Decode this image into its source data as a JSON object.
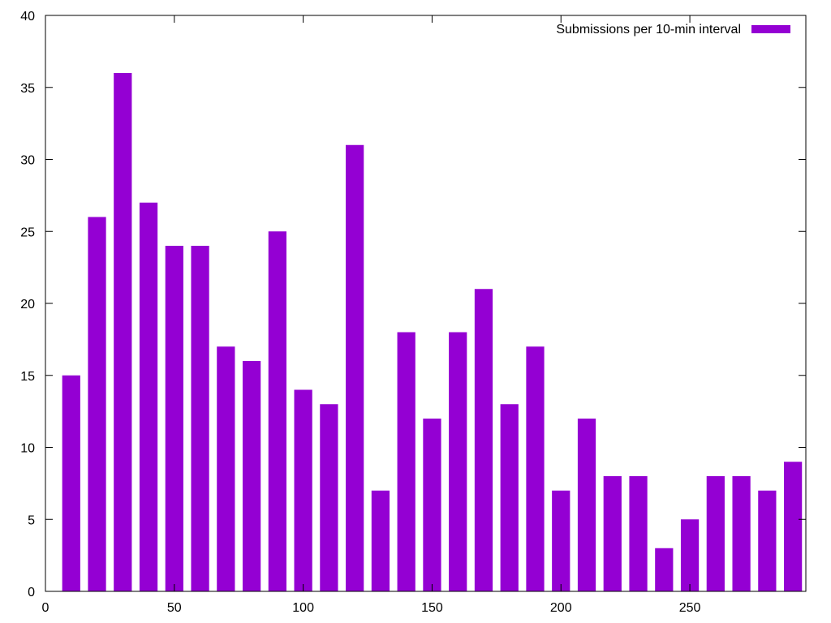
{
  "chart_data": {
    "type": "bar",
    "title": "",
    "xlabel": "",
    "ylabel": "",
    "xlim": [
      0,
      295
    ],
    "ylim": [
      0,
      40
    ],
    "x_ticks": [
      0,
      50,
      100,
      150,
      200,
      250
    ],
    "y_ticks": [
      0,
      5,
      10,
      15,
      20,
      25,
      30,
      35,
      40
    ],
    "bar_width": 7,
    "grid": false,
    "legend_position": "top-right",
    "series": [
      {
        "name": "Submissions per 10-min interval",
        "color": "#9400d3",
        "x": [
          10,
          20,
          30,
          40,
          50,
          60,
          70,
          80,
          90,
          100,
          110,
          120,
          130,
          140,
          150,
          160,
          170,
          180,
          190,
          200,
          210,
          220,
          230,
          240,
          250,
          260,
          270,
          280,
          290
        ],
        "values": [
          15,
          26,
          36,
          27,
          24,
          24,
          17,
          16,
          25,
          14,
          13,
          31,
          7,
          18,
          12,
          18,
          21,
          13,
          17,
          7,
          12,
          8,
          8,
          3,
          5,
          8,
          8,
          7,
          9
        ]
      }
    ]
  }
}
